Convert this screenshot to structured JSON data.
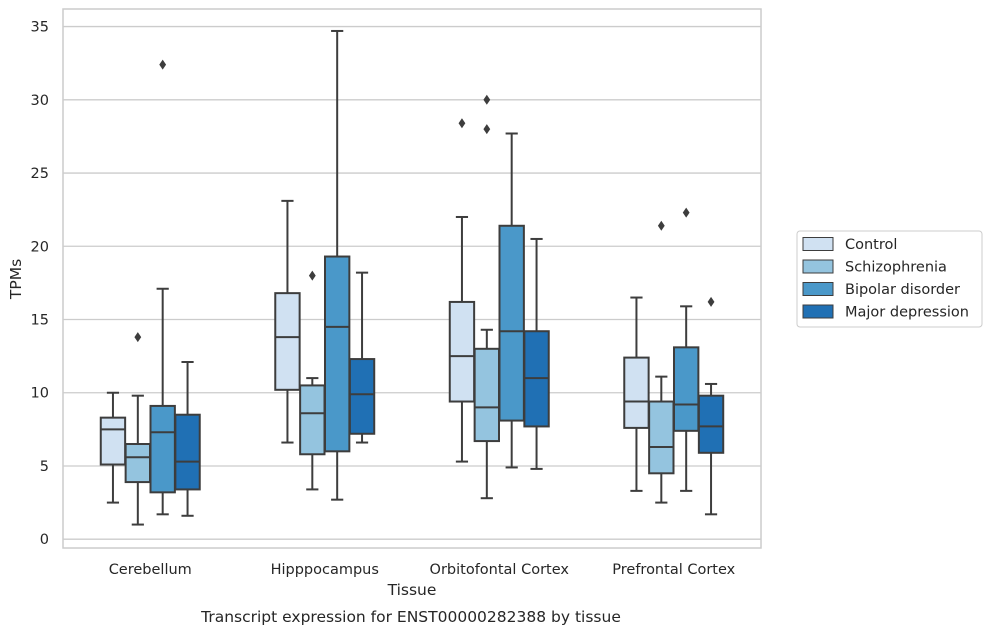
{
  "chart_data": {
    "type": "box",
    "caption": "Transcript expression for ENST00000282388 by tissue",
    "xlabel": "Tissue",
    "ylabel": "TPMs",
    "ylim": [
      -0.6,
      36.2
    ],
    "yticks": [
      0,
      5,
      10,
      15,
      20,
      25,
      30,
      35
    ],
    "grid": "horizontal",
    "legend_position": "right",
    "categories": [
      "Cerebellum",
      "Hipppocampus",
      "Orbitofontal Cortex",
      "Prefrontal Cortex"
    ],
    "series": [
      {
        "name": "Control",
        "color": "#d0e1f2",
        "boxes": [
          {
            "whislo": 2.5,
            "q1": 5.1,
            "med": 7.5,
            "q3": 8.3,
            "whishi": 10.0,
            "fliers": []
          },
          {
            "whislo": 6.6,
            "q1": 10.2,
            "med": 13.8,
            "q3": 16.8,
            "whishi": 23.1,
            "fliers": []
          },
          {
            "whislo": 5.3,
            "q1": 9.4,
            "med": 12.5,
            "q3": 16.2,
            "whishi": 22.0,
            "fliers": [
              28.4
            ]
          },
          {
            "whislo": 3.3,
            "q1": 7.6,
            "med": 9.4,
            "q3": 12.4,
            "whishi": 16.5,
            "fliers": []
          }
        ]
      },
      {
        "name": "Schizophrenia",
        "color": "#94c4df",
        "boxes": [
          {
            "whislo": 1.0,
            "q1": 3.9,
            "med": 5.6,
            "q3": 6.5,
            "whishi": 9.8,
            "fliers": [
              13.8
            ]
          },
          {
            "whislo": 3.4,
            "q1": 5.8,
            "med": 8.6,
            "q3": 10.5,
            "whishi": 11.0,
            "fliers": [
              18.0
            ]
          },
          {
            "whislo": 2.8,
            "q1": 6.7,
            "med": 9.0,
            "q3": 13.0,
            "whishi": 14.3,
            "fliers": [
              28.0,
              30.0
            ]
          },
          {
            "whislo": 2.5,
            "q1": 4.5,
            "med": 6.3,
            "q3": 9.4,
            "whishi": 11.1,
            "fliers": [
              21.4
            ]
          }
        ]
      },
      {
        "name": "Bipolar disorder",
        "color": "#4a98c9",
        "boxes": [
          {
            "whislo": 1.7,
            "q1": 3.2,
            "med": 7.3,
            "q3": 9.1,
            "whishi": 17.1,
            "fliers": [
              32.4
            ]
          },
          {
            "whislo": 2.7,
            "q1": 6.0,
            "med": 14.5,
            "q3": 19.3,
            "whishi": 34.7,
            "fliers": []
          },
          {
            "whislo": 4.9,
            "q1": 8.1,
            "med": 14.2,
            "q3": 21.4,
            "whishi": 27.7,
            "fliers": []
          },
          {
            "whislo": 3.3,
            "q1": 7.4,
            "med": 9.2,
            "q3": 13.1,
            "whishi": 15.9,
            "fliers": [
              22.3
            ]
          }
        ]
      },
      {
        "name": "Major depression",
        "color": "#2070b4",
        "boxes": [
          {
            "whislo": 1.6,
            "q1": 3.4,
            "med": 5.3,
            "q3": 8.5,
            "whishi": 12.1,
            "fliers": []
          },
          {
            "whislo": 6.6,
            "q1": 7.2,
            "med": 9.9,
            "q3": 12.3,
            "whishi": 18.2,
            "fliers": []
          },
          {
            "whislo": 4.8,
            "q1": 7.7,
            "med": 11.0,
            "q3": 14.2,
            "whishi": 20.5,
            "fliers": []
          },
          {
            "whislo": 1.7,
            "q1": 5.9,
            "med": 7.7,
            "q3": 9.8,
            "whishi": 10.6,
            "fliers": [
              16.2
            ]
          }
        ]
      }
    ]
  }
}
